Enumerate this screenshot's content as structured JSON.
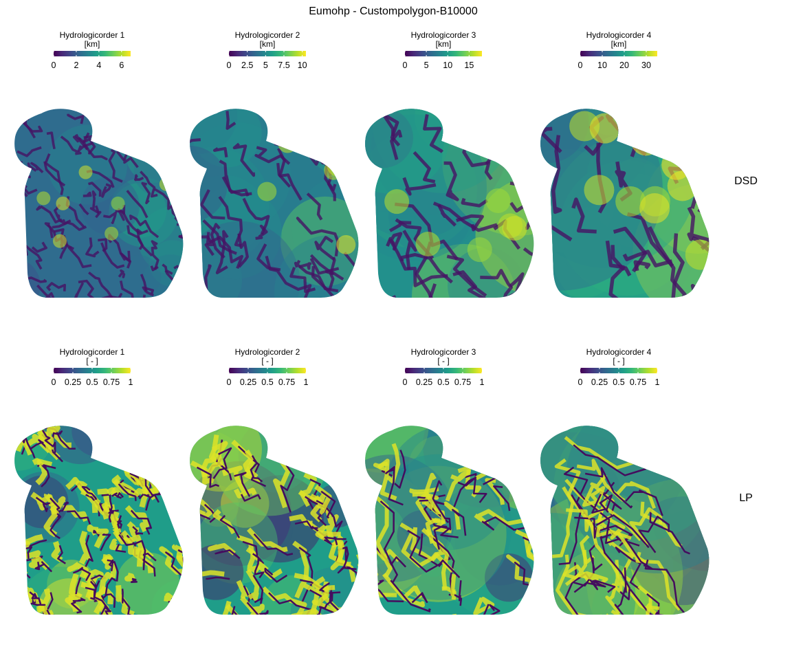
{
  "title": "Eumohp - Custompolygon-B10000",
  "colors": {
    "viridis": [
      "#440154",
      "#482878",
      "#3e4989",
      "#31688e",
      "#26828e",
      "#1f9e89",
      "#35b779",
      "#6ece58",
      "#b5de2b",
      "#fde725"
    ],
    "boundary_fill": "#31688e"
  },
  "chart_data": [
    {
      "type": "heatmap",
      "row": "DSD",
      "panels": [
        {
          "legend_title": "Hydrologicorder 1",
          "unit": "[km]",
          "limits": [
            0,
            6.8
          ],
          "ticks": [
            0,
            2,
            4,
            6
          ],
          "tick_labels": [
            "0",
            "2",
            "4",
            "6"
          ],
          "scale": 1
        },
        {
          "legend_title": "Hydrologicorder 2",
          "unit": "[km]",
          "limits": [
            0,
            10.5
          ],
          "ticks": [
            0,
            2.5,
            5,
            7.5,
            10
          ],
          "tick_labels": [
            "0",
            "2.5",
            "5",
            "7.5",
            "10"
          ],
          "scale": 2
        },
        {
          "legend_title": "Hydrologicorder 3",
          "unit": "[km]",
          "limits": [
            0,
            18
          ],
          "ticks": [
            0,
            5,
            10,
            15
          ],
          "tick_labels": [
            "0",
            "5",
            "10",
            "15"
          ],
          "scale": 3
        },
        {
          "legend_title": "Hydrologicorder 4",
          "unit": "[km]",
          "limits": [
            0,
            35
          ],
          "ticks": [
            0,
            10,
            20,
            30
          ],
          "tick_labels": [
            "0",
            "10",
            "20",
            "30"
          ],
          "scale": 4
        }
      ]
    },
    {
      "type": "heatmap",
      "row": "LP",
      "panels": [
        {
          "legend_title": "Hydrologicorder 1",
          "unit": "[ - ]",
          "limits": [
            0,
            1
          ],
          "ticks": [
            0,
            0.25,
            0.5,
            0.75,
            1
          ],
          "tick_labels": [
            "0",
            "0.25",
            "0.5",
            "0.75",
            "1"
          ],
          "scale": 1
        },
        {
          "legend_title": "Hydrologicorder 2",
          "unit": "[ - ]",
          "limits": [
            0,
            1
          ],
          "ticks": [
            0,
            0.25,
            0.5,
            0.75,
            1
          ],
          "tick_labels": [
            "0",
            "0.25",
            "0.5",
            "0.75",
            "1"
          ],
          "scale": 2
        },
        {
          "legend_title": "Hydrologicorder 3",
          "unit": "[ - ]",
          "limits": [
            0,
            1
          ],
          "ticks": [
            0,
            0.25,
            0.5,
            0.75,
            1
          ],
          "tick_labels": [
            "0",
            "0.25",
            "0.5",
            "0.75",
            "1"
          ],
          "scale": 3
        },
        {
          "legend_title": "Hydrologicorder 4",
          "unit": "[ - ]",
          "limits": [
            0,
            1
          ],
          "ticks": [
            0,
            0.25,
            0.5,
            0.75,
            1
          ],
          "tick_labels": [
            "0",
            "0.25",
            "0.5",
            "0.75",
            "1"
          ],
          "scale": 4
        }
      ]
    }
  ]
}
